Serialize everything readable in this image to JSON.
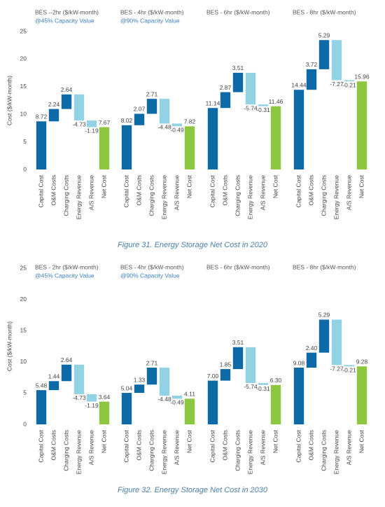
{
  "chart_data": [
    {
      "type": "waterfall",
      "title": "BES --2hr ($/kW-month)",
      "subtitle": "@45% Capacity Value",
      "ylabel": "Cost ($/kW-month)",
      "categories": [
        "Capital Cost",
        "O&M Costs",
        "Charging Costs",
        "Energy Revenue",
        "A/S Revenue",
        "Net Cost"
      ],
      "values": [
        8.72,
        2.24,
        2.64,
        -4.73,
        -1.19,
        7.67
      ],
      "ylim": [
        0,
        25
      ],
      "yticks": [
        0,
        5,
        10,
        15,
        20,
        25
      ],
      "color_increase": "#0e6aa6",
      "color_decrease": "#93d1e5",
      "color_total": "#8dc63f"
    },
    {
      "type": "waterfall",
      "title": "BES - 4hr ($/kW-month)",
      "subtitle": "@90% Capacity Value",
      "categories": [
        "Capital Cost",
        "O&M Costs",
        "Charging Costs",
        "Energy Revenue",
        "A/S Revenue",
        "Net Cost"
      ],
      "values": [
        8.02,
        2.07,
        2.71,
        -4.48,
        -0.49,
        7.82
      ],
      "ylim": [
        0,
        25
      ],
      "color_increase": "#0e6aa6",
      "color_decrease": "#93d1e5",
      "color_total": "#8dc63f"
    },
    {
      "type": "waterfall",
      "title": "BES - 6hr ($/kW-month)",
      "categories": [
        "Capital Cost",
        "O&M Costs",
        "Charging Costs",
        "Energy Revenue",
        "A/S Revenue",
        "Net Cost"
      ],
      "values": [
        11.14,
        2.87,
        3.51,
        -5.74,
        -0.31,
        11.46
      ],
      "ylim": [
        0,
        25
      ],
      "color_increase": "#0e6aa6",
      "color_decrease": "#93d1e5",
      "color_total": "#8dc63f"
    },
    {
      "type": "waterfall",
      "title": "BES - 8hr ($/kW-month)",
      "categories": [
        "Capital Cost",
        "O&M Costs",
        "Charging Costs",
        "Energy Revenue",
        "A/S Revenue",
        "Net Cost"
      ],
      "values": [
        14.44,
        3.72,
        5.29,
        -7.27,
        -0.21,
        15.96
      ],
      "ylim": [
        0,
        25
      ],
      "color_increase": "#0e6aa6",
      "color_decrease": "#93d1e5",
      "color_total": "#8dc63f"
    },
    {
      "type": "waterfall",
      "title": "BES - 2hr ($/kW-month)",
      "subtitle": "@45% Capacity Value",
      "ylabel": "Cost ($/kW-month)",
      "categories": [
        "Capital Cost",
        "O&M Costs",
        "Charging Costs",
        "Energy Revenue",
        "A/S Revenue",
        "Net Cost"
      ],
      "values": [
        5.48,
        1.44,
        2.64,
        -4.73,
        -1.19,
        3.64
      ],
      "ylim": [
        0,
        25
      ],
      "yticks": [
        0,
        5,
        10,
        15,
        20,
        25
      ],
      "color_increase": "#0e6aa6",
      "color_decrease": "#93d1e5",
      "color_total": "#8dc63f"
    },
    {
      "type": "waterfall",
      "title": "BES - 4hr ($/kW-month)",
      "subtitle": "@90% Capacity Value",
      "categories": [
        "Capital Cost",
        "O&M Costs",
        "Charging Costs",
        "Energy Revenue",
        "A/S Revenue",
        "Net Cost"
      ],
      "values": [
        5.04,
        1.33,
        2.71,
        -4.48,
        -0.49,
        4.11
      ],
      "ylim": [
        0,
        25
      ],
      "color_increase": "#0e6aa6",
      "color_decrease": "#93d1e5",
      "color_total": "#8dc63f"
    },
    {
      "type": "waterfall",
      "title": "BES - 6hr ($/kW-month)",
      "categories": [
        "Capital Cost",
        "O&M Costs",
        "Charging Costs",
        "Energy Revenue",
        "A/S Revenue",
        "Net Cost"
      ],
      "values": [
        7.0,
        1.85,
        3.51,
        -5.74,
        -0.31,
        6.3
      ],
      "value_labels": [
        "7.00",
        "1.85",
        "3.51",
        "-5.74",
        "-0.31",
        "6.30"
      ],
      "ylim": [
        0,
        25
      ],
      "color_increase": "#0e6aa6",
      "color_decrease": "#93d1e5",
      "color_total": "#8dc63f"
    },
    {
      "type": "waterfall",
      "title": "BES - 8hr ($/kW-month)",
      "categories": [
        "Capital Cost",
        "O&M Costs",
        "Charging Costs",
        "Energy Revenue",
        "A/S Revenue",
        "Net Cost"
      ],
      "values": [
        9.08,
        2.4,
        5.29,
        -7.27,
        -0.21,
        9.28
      ],
      "value_labels": [
        "9.08",
        "2.40",
        "5.29",
        "-7.27",
        "-0.21",
        "9.28"
      ],
      "ylim": [
        0,
        25
      ],
      "color_increase": "#0e6aa6",
      "color_decrease": "#93d1e5",
      "color_total": "#8dc63f"
    }
  ],
  "captions": [
    "Figure 31. Energy Storage Net Cost in 2020",
    "Figure 32. Energy Storage Net Cost in 2030"
  ]
}
